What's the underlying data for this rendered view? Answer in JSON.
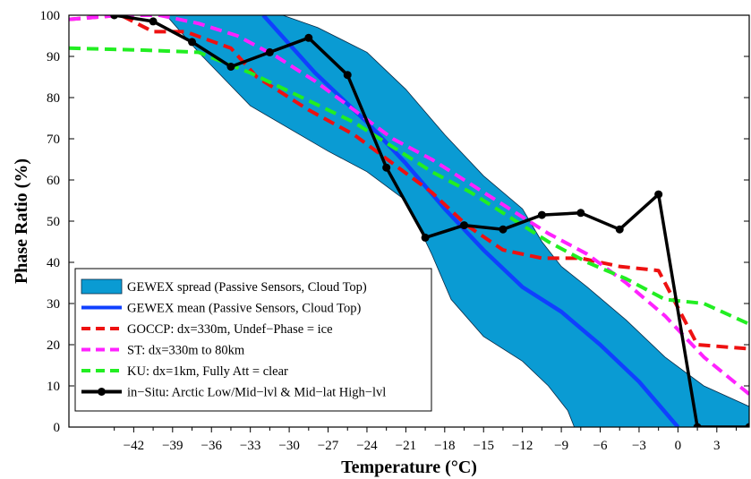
{
  "chart_data": {
    "type": "line",
    "xlabel": "Temperature (°C)",
    "ylabel": "Phase Ratio (%)",
    "xlim": [
      -47,
      5.5
    ],
    "ylim": [
      0,
      100
    ],
    "xticks": [
      -42,
      -39,
      -36,
      -33,
      -30,
      -27,
      -24,
      -21,
      -18,
      -15,
      -12,
      -9,
      -6,
      -3,
      0,
      3
    ],
    "yticks": [
      0,
      10,
      20,
      30,
      40,
      50,
      60,
      70,
      80,
      90,
      100
    ],
    "grid": false,
    "legend_position": "bottom-left",
    "spread": {
      "name": "GEWEX spread (Passive Sensors, Cloud Top)",
      "color": "#0a9bd3",
      "upper": [
        [
          -30.5,
          100
        ],
        [
          -27.8,
          97
        ],
        [
          -24,
          91
        ],
        [
          -21,
          82
        ],
        [
          -18,
          71
        ],
        [
          -15,
          61
        ],
        [
          -12,
          53
        ],
        [
          -10.5,
          45
        ],
        [
          -9,
          39
        ],
        [
          -7,
          34
        ],
        [
          -4,
          26
        ],
        [
          -1,
          17
        ],
        [
          2,
          10
        ],
        [
          5.5,
          5
        ]
      ],
      "lower": [
        [
          -39.5,
          100
        ],
        [
          -37,
          91
        ],
        [
          -33,
          78
        ],
        [
          -27,
          67
        ],
        [
          -24,
          62
        ],
        [
          -21,
          55
        ],
        [
          -19,
          42
        ],
        [
          -17.5,
          31
        ],
        [
          -15,
          22
        ],
        [
          -12,
          16
        ],
        [
          -10,
          10
        ],
        [
          -8.5,
          4
        ],
        [
          -8,
          0
        ]
      ]
    },
    "series": [
      {
        "name": "GEWEX mean (Passive Sensors, Cloud Top)",
        "color": "#1040ff",
        "style": "solid",
        "points": [
          [
            -32,
            100
          ],
          [
            -28,
            86
          ],
          [
            -24,
            74
          ],
          [
            -21,
            64
          ],
          [
            -18,
            53
          ],
          [
            -15,
            43
          ],
          [
            -12,
            34
          ],
          [
            -9,
            28
          ],
          [
            -6,
            20
          ],
          [
            -3,
            11
          ],
          [
            0,
            0
          ]
        ]
      },
      {
        "name": "GOCCP: dx=330m, Undef−Phase = ice",
        "color": "#ee1111",
        "style": "dashed",
        "points": [
          [
            -47,
            99
          ],
          [
            -43,
            100
          ],
          [
            -40.5,
            96
          ],
          [
            -38,
            96
          ],
          [
            -34.5,
            92
          ],
          [
            -32.5,
            85
          ],
          [
            -28.5,
            77
          ],
          [
            -25,
            71
          ],
          [
            -22,
            64
          ],
          [
            -19,
            57
          ],
          [
            -16.3,
            49
          ],
          [
            -13.5,
            43
          ],
          [
            -10.5,
            41
          ],
          [
            -7.5,
            41
          ],
          [
            -4.5,
            39
          ],
          [
            -1.5,
            38
          ],
          [
            1.5,
            20
          ],
          [
            5.5,
            19
          ]
        ]
      },
      {
        "name": "ST: dx=330m to 80km",
        "color": "#ff22ff",
        "style": "dashed",
        "points": [
          [
            -47,
            99
          ],
          [
            -43,
            100
          ],
          [
            -40,
            100
          ],
          [
            -37,
            98
          ],
          [
            -34,
            95
          ],
          [
            -31,
            90
          ],
          [
            -28,
            84
          ],
          [
            -25,
            77
          ],
          [
            -22,
            70
          ],
          [
            -19,
            65
          ],
          [
            -16,
            59
          ],
          [
            -13,
            53
          ],
          [
            -10,
            47
          ],
          [
            -7,
            42
          ],
          [
            -4,
            35
          ],
          [
            -1,
            27
          ],
          [
            2,
            17
          ],
          [
            5.5,
            8
          ]
        ]
      },
      {
        "name": "KU: dx=1km, Fully Att = clear",
        "color": "#22ee22",
        "style": "dashed",
        "points": [
          [
            -47,
            92
          ],
          [
            -41,
            91.5
          ],
          [
            -37,
            91
          ],
          [
            -33,
            86
          ],
          [
            -29,
            80
          ],
          [
            -25,
            74
          ],
          [
            -22,
            68
          ],
          [
            -19,
            62
          ],
          [
            -16,
            57
          ],
          [
            -13,
            51
          ],
          [
            -10,
            45
          ],
          [
            -7,
            40
          ],
          [
            -4,
            36
          ],
          [
            -1,
            31
          ],
          [
            2,
            30
          ],
          [
            5.5,
            25
          ]
        ]
      },
      {
        "name": "in−Situ: Arctic Low/Mid−lvl & Mid−lat High−lvl",
        "color": "#000000",
        "style": "solid-markers",
        "points": [
          [
            -43.5,
            100
          ],
          [
            -40.5,
            98.5
          ],
          [
            -37.5,
            93.5
          ],
          [
            -34.5,
            87.5
          ],
          [
            -31.5,
            91
          ],
          [
            -28.5,
            94.5
          ],
          [
            -25.5,
            85.5
          ],
          [
            -22.5,
            63
          ],
          [
            -19.5,
            46
          ],
          [
            -16.5,
            49
          ],
          [
            -13.5,
            48
          ],
          [
            -10.5,
            51.5
          ],
          [
            -7.5,
            52
          ],
          [
            -4.5,
            48
          ],
          [
            -1.5,
            56.5
          ],
          [
            1.5,
            0
          ],
          [
            5.5,
            0
          ]
        ]
      }
    ]
  }
}
